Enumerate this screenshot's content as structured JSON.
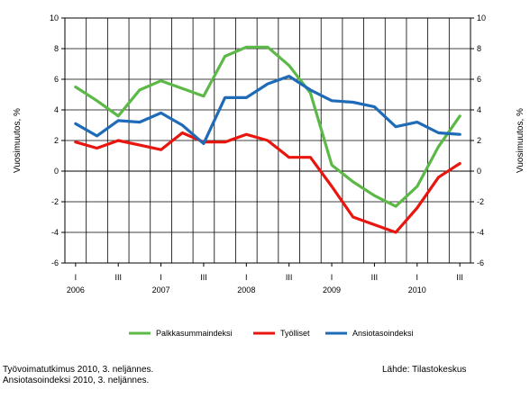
{
  "chart_data": {
    "type": "line",
    "ylabel_left": "Vuosimuutos, %",
    "ylabel_right": "Vuosimuutos, %",
    "ylim": [
      -6,
      10
    ],
    "yticks": [
      -6,
      -4,
      -2,
      0,
      2,
      4,
      6,
      8,
      10
    ],
    "grid": true,
    "legend_position": "bottom",
    "quarter_tick_labels": [
      "I",
      "III",
      "I",
      "III",
      "I",
      "III",
      "I",
      "III",
      "I",
      "III"
    ],
    "year_labels": [
      "2006",
      "2007",
      "2008",
      "2009",
      "2010"
    ],
    "x": [
      "2006 Q1",
      "2006 Q2",
      "2006 Q3",
      "2006 Q4",
      "2007 Q1",
      "2007 Q2",
      "2007 Q3",
      "2007 Q4",
      "2008 Q1",
      "2008 Q2",
      "2008 Q3",
      "2008 Q4",
      "2009 Q1",
      "2009 Q2",
      "2009 Q3",
      "2009 Q4",
      "2010 Q1",
      "2010 Q2",
      "2010 Q3"
    ],
    "series": [
      {
        "name": "Palkkasummaindeksi",
        "color": "#5cb947",
        "values": [
          5.5,
          4.6,
          3.6,
          5.3,
          5.9,
          5.4,
          4.9,
          7.5,
          8.1,
          8.1,
          6.9,
          5.1,
          0.4,
          -0.7,
          -1.6,
          -2.3,
          -1.0,
          1.6,
          3.6
        ]
      },
      {
        "name": "Työlliset",
        "color": "#e8160f",
        "values": [
          1.9,
          1.5,
          2.0,
          1.7,
          1.4,
          2.5,
          1.9,
          1.9,
          2.4,
          2.0,
          0.9,
          0.9,
          -1.0,
          -3.0,
          -3.5,
          -4.0,
          -2.4,
          -0.4,
          0.5
        ]
      },
      {
        "name": "Ansiotasoindeksi",
        "color": "#1f6bb7",
        "values": [
          3.1,
          2.3,
          3.3,
          3.2,
          3.8,
          3.0,
          1.8,
          4.8,
          4.8,
          5.7,
          6.2,
          5.3,
          4.6,
          4.5,
          4.2,
          2.9,
          3.2,
          2.5,
          2.4
        ]
      }
    ]
  },
  "footer": {
    "source_lines": [
      "Työvoimatutkimus 2010, 3. neljännes.",
      "Ansiotasoindeksi 2010, 3. neljännes."
    ],
    "credit": "Lähde: Tilastokeskus"
  }
}
